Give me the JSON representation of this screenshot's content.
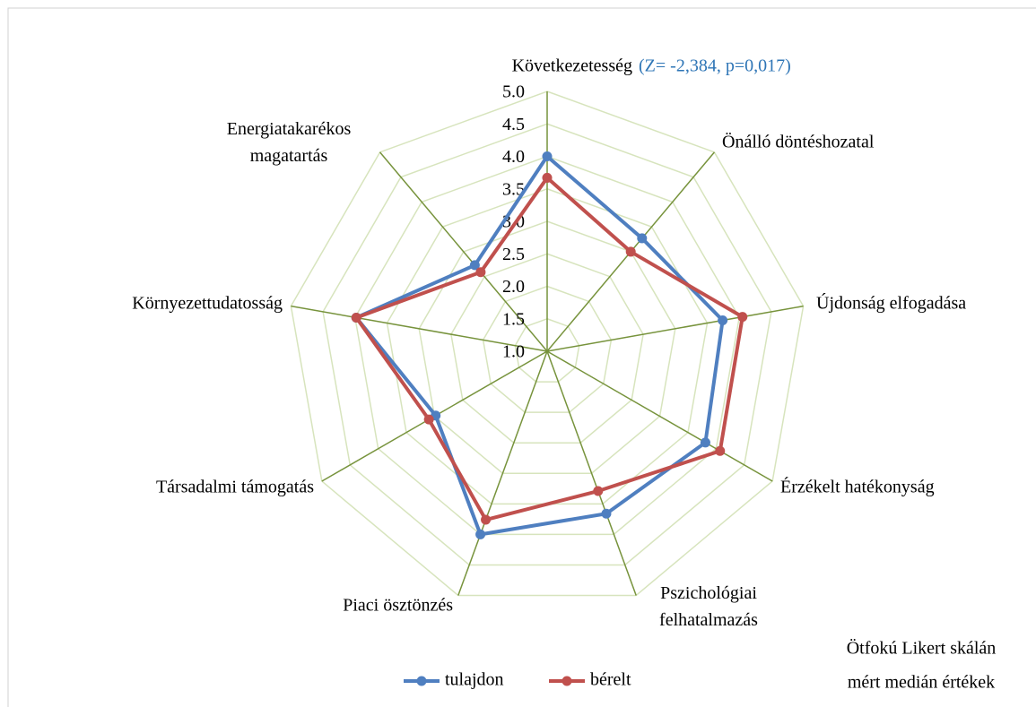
{
  "chart_data": {
    "type": "radar",
    "categories": [
      "Következetesség",
      "Önálló döntéshozatal",
      "Újdonság elfogadása",
      "Érzékelt hatékonyság",
      "Pszichológiai felhatalmazás",
      "Piaci ösztönzés",
      "Társadalmi támogatás",
      "Környezettudatosság",
      "Energiatakarékos magatartás"
    ],
    "annotation": "(Z= -2,384, p=0,017)",
    "caption": [
      "Ötfokú Likert skálán",
      "mért medián értékek"
    ],
    "series": [
      {
        "name": "tulajdon",
        "color": "#4f7fc0",
        "values": [
          4.0,
          3.27,
          3.74,
          3.81,
          3.66,
          4.0,
          2.98,
          3.98,
          2.73
        ]
      },
      {
        "name": "bérelt",
        "color": "#c0504d",
        "values": [
          3.67,
          3.0,
          4.05,
          4.07,
          3.29,
          3.76,
          3.1,
          3.98,
          2.59
        ]
      }
    ],
    "ylim": [
      1.0,
      5.0
    ],
    "yticks": [
      {
        "value": 1.0,
        "label": "1.0"
      },
      {
        "value": 1.5,
        "label": "1.5"
      },
      {
        "value": 2.0,
        "label": "2.0"
      },
      {
        "value": 2.5,
        "label": "2.5"
      },
      {
        "value": 3.0,
        "label": "3.0"
      },
      {
        "value": 3.5,
        "label": "3.5"
      },
      {
        "value": 4.0,
        "label": "4.0"
      },
      {
        "value": 4.5,
        "label": "4.5"
      },
      {
        "value": 5.0,
        "label": "5.0"
      }
    ],
    "grid": true
  }
}
